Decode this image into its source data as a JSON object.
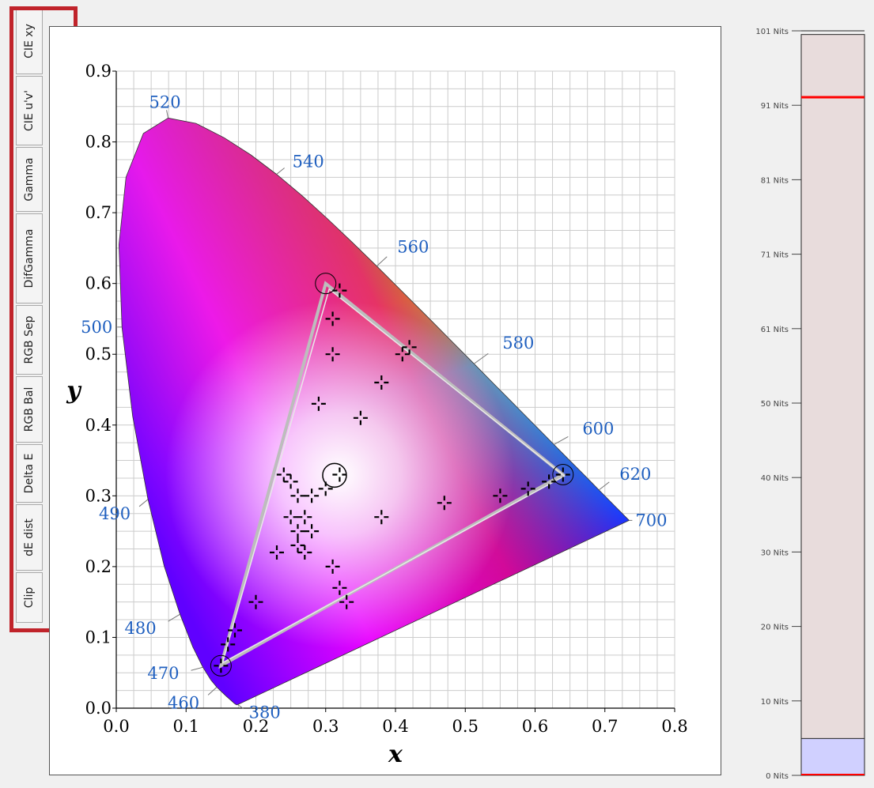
{
  "tabs": [
    {
      "label": "CIE xy"
    },
    {
      "label": "CIE u'v'"
    },
    {
      "label": "Gamma"
    },
    {
      "label": "DifGamma"
    },
    {
      "label": "RGB Sep"
    },
    {
      "label": "RGB Bal"
    },
    {
      "label": "Delta E"
    },
    {
      "label": "dE dist"
    },
    {
      "label": "Clip"
    }
  ],
  "chart_data": {
    "type": "scatter",
    "title": "",
    "xlabel": "x",
    "ylabel": "y",
    "xlim": [
      0,
      0.8
    ],
    "ylim": [
      0,
      0.9
    ],
    "x_ticks": [
      "0.0",
      "0.1",
      "0.2",
      "0.3",
      "0.4",
      "0.5",
      "0.6",
      "0.7",
      "0.8"
    ],
    "y_ticks": [
      "0.0",
      "0.1",
      "0.2",
      "0.3",
      "0.4",
      "0.5",
      "0.6",
      "0.7",
      "0.8",
      "0.9"
    ],
    "grid": true,
    "locus": [
      {
        "label": "380",
        "x": 0.1741,
        "y": 0.005
      },
      {
        "label": "460",
        "x": 0.144,
        "y": 0.0297
      },
      {
        "label": "470",
        "x": 0.1241,
        "y": 0.0578
      },
      {
        "label": "480",
        "x": 0.0913,
        "y": 0.1327
      },
      {
        "label": "490",
        "x": 0.0454,
        "y": 0.295
      },
      {
        "label": "500",
        "x": 0.0082,
        "y": 0.5384
      },
      {
        "label": "520",
        "x": 0.0743,
        "y": 0.8338
      },
      {
        "label": "540",
        "x": 0.2296,
        "y": 0.7543
      },
      {
        "label": "560",
        "x": 0.3731,
        "y": 0.6245
      },
      {
        "label": "580",
        "x": 0.5125,
        "y": 0.4866
      },
      {
        "label": "600",
        "x": 0.627,
        "y": 0.3725
      },
      {
        "label": "620",
        "x": 0.6915,
        "y": 0.3083
      },
      {
        "label": "700",
        "x": 0.7347,
        "y": 0.2653
      }
    ],
    "target_gamut": [
      {
        "name": "red",
        "x": 0.64,
        "y": 0.33
      },
      {
        "name": "green",
        "x": 0.3,
        "y": 0.6
      },
      {
        "name": "blue",
        "x": 0.15,
        "y": 0.06
      }
    ],
    "white_point": {
      "x": 0.3127,
      "y": 0.329
    },
    "measured_gamut": [
      {
        "x": 0.642,
        "y": 0.328
      },
      {
        "x": 0.305,
        "y": 0.592
      },
      {
        "x": 0.152,
        "y": 0.064
      }
    ],
    "measurements": [
      {
        "x": 0.31,
        "y": 0.55
      },
      {
        "x": 0.31,
        "y": 0.5
      },
      {
        "x": 0.29,
        "y": 0.43
      },
      {
        "x": 0.35,
        "y": 0.41
      },
      {
        "x": 0.38,
        "y": 0.46
      },
      {
        "x": 0.41,
        "y": 0.5
      },
      {
        "x": 0.42,
        "y": 0.51
      },
      {
        "x": 0.32,
        "y": 0.59
      },
      {
        "x": 0.24,
        "y": 0.33
      },
      {
        "x": 0.25,
        "y": 0.32
      },
      {
        "x": 0.26,
        "y": 0.3
      },
      {
        "x": 0.28,
        "y": 0.3
      },
      {
        "x": 0.25,
        "y": 0.27
      },
      {
        "x": 0.27,
        "y": 0.27
      },
      {
        "x": 0.26,
        "y": 0.25
      },
      {
        "x": 0.28,
        "y": 0.25
      },
      {
        "x": 0.26,
        "y": 0.23
      },
      {
        "x": 0.23,
        "y": 0.22
      },
      {
        "x": 0.27,
        "y": 0.22
      },
      {
        "x": 0.32,
        "y": 0.33
      },
      {
        "x": 0.38,
        "y": 0.27
      },
      {
        "x": 0.47,
        "y": 0.29
      },
      {
        "x": 0.55,
        "y": 0.3
      },
      {
        "x": 0.59,
        "y": 0.31
      },
      {
        "x": 0.62,
        "y": 0.32
      },
      {
        "x": 0.64,
        "y": 0.33
      },
      {
        "x": 0.31,
        "y": 0.2
      },
      {
        "x": 0.32,
        "y": 0.17
      },
      {
        "x": 0.33,
        "y": 0.15
      },
      {
        "x": 0.2,
        "y": 0.15
      },
      {
        "x": 0.17,
        "y": 0.11
      },
      {
        "x": 0.16,
        "y": 0.09
      },
      {
        "x": 0.15,
        "y": 0.06
      },
      {
        "x": 0.3,
        "y": 0.31
      }
    ]
  },
  "nits_chart": {
    "type": "bar",
    "ylim": [
      0,
      101
    ],
    "y_ticks": [
      "0 Nits",
      "10 Nits",
      "20 Nits",
      "30 Nits",
      "40 Nits",
      "50 Nits",
      "61 Nits",
      "71 Nits",
      "81 Nits",
      "91 Nits",
      "101 Nits"
    ],
    "white_level": 100.5,
    "current_level": 92,
    "black_level": 5,
    "colors": {
      "bar": "#e8dcdc",
      "black_fill": "#d0d0ff",
      "marker": "#ff0000",
      "frame": "#222222"
    }
  },
  "colors": {
    "highlight": "#c0232a",
    "gamut": "#bdbdbd",
    "label": "#1f5fbf",
    "axis": "#000000",
    "grid": "#cccccc"
  }
}
